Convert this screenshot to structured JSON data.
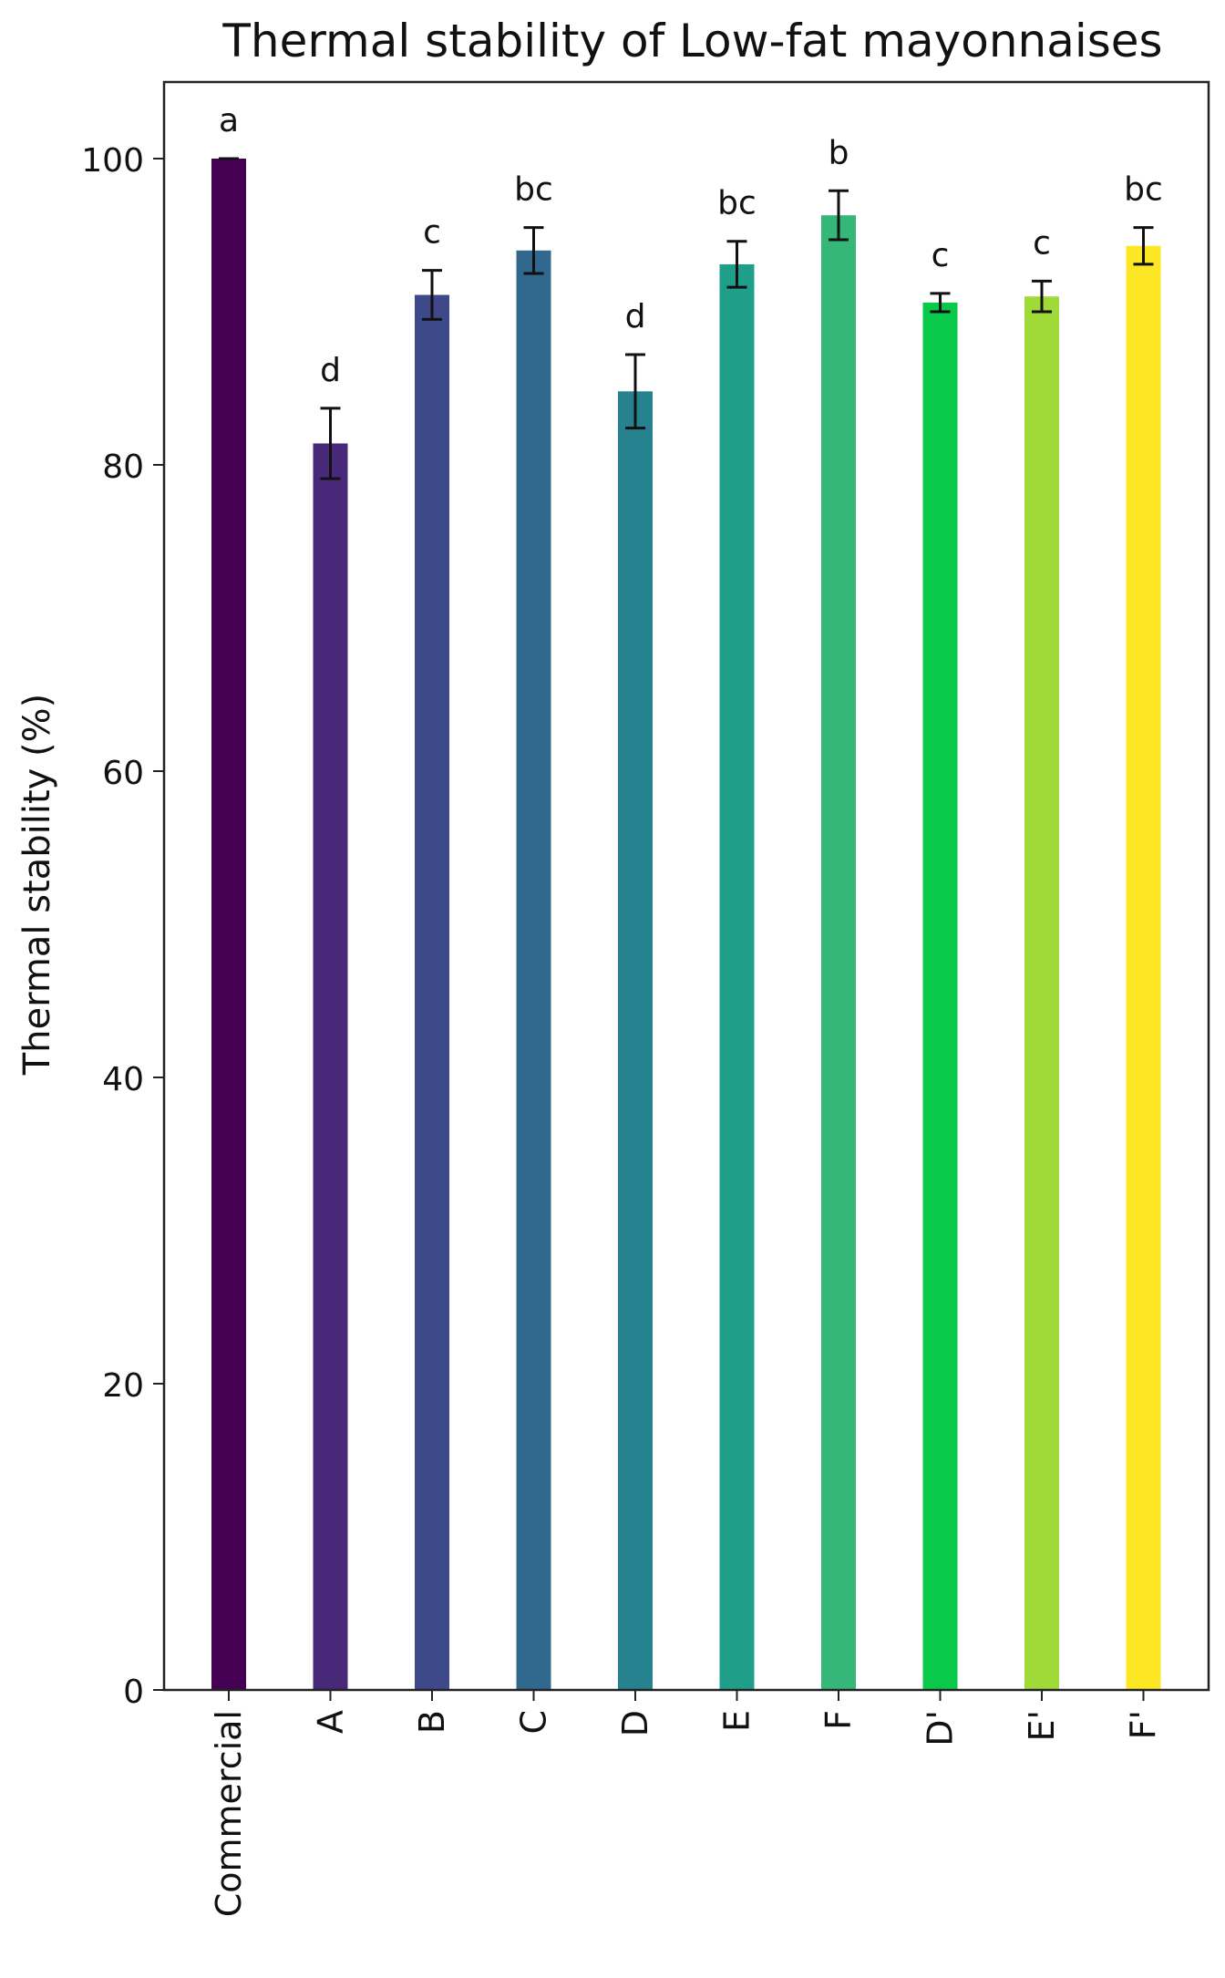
{
  "chart_data": {
    "type": "bar",
    "title": "Thermal stability of Low-fat mayonnaises",
    "xlabel": "",
    "ylabel": "Thermal stability (%)",
    "ylim": [
      0,
      105
    ],
    "yticks": [
      "0",
      "20",
      "40",
      "60",
      "80",
      "100"
    ],
    "grid": false,
    "categories": [
      "Commercial",
      "A",
      "B",
      "C",
      "D",
      "E",
      "F",
      "D'",
      "E'",
      "F'"
    ],
    "values": [
      100,
      81.4,
      91.1,
      94.0,
      84.8,
      93.1,
      96.3,
      90.6,
      91.0,
      94.3
    ],
    "errors": [
      0,
      2.3,
      1.6,
      1.5,
      2.4,
      1.5,
      1.6,
      0.6,
      1.0,
      1.2
    ],
    "letters": [
      "a",
      "d",
      "c",
      "bc",
      "d",
      "bc",
      "b",
      "c",
      "c",
      "bc"
    ],
    "colors": [
      "#440154",
      "#482878",
      "#3e4989",
      "#31688e",
      "#26828e",
      "#1f9e89",
      "#35b779",
      "#08c94a",
      "#a0da39",
      "#fde725"
    ]
  }
}
